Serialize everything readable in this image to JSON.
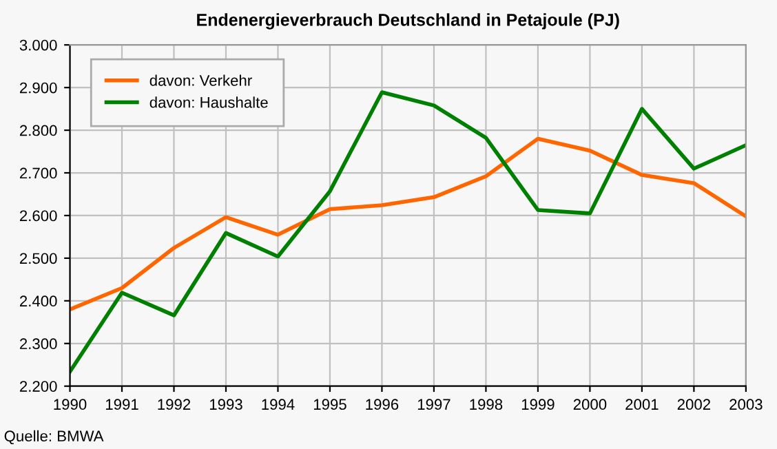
{
  "chart_data": {
    "type": "line",
    "title": "Endenergieverbrauch Deutschland in Petajoule (PJ)",
    "x": [
      1990,
      1991,
      1992,
      1993,
      1994,
      1995,
      1996,
      1997,
      1998,
      1999,
      2000,
      2001,
      2002,
      2003
    ],
    "series": [
      {
        "name": "davon: Verkehr",
        "color": "#ff6600",
        "values": [
          2380,
          2430,
          2524,
          2596,
          2555,
          2615,
          2624,
          2643,
          2692,
          2780,
          2752,
          2695,
          2676,
          2598
        ]
      },
      {
        "name": "davon: Haushalte",
        "color": "#008000",
        "values": [
          2234,
          2419,
          2366,
          2559,
          2504,
          2657,
          2889,
          2858,
          2782,
          2613,
          2605,
          2850,
          2710,
          2765
        ]
      }
    ],
    "xlim": [
      1990,
      2003
    ],
    "xticks": [
      1990,
      1991,
      1992,
      1993,
      1994,
      1995,
      1996,
      1997,
      1998,
      1999,
      2000,
      2001,
      2002,
      2003
    ],
    "ylim": [
      2200,
      3000
    ],
    "yticks": [
      {
        "value": 2200,
        "label": "2.200"
      },
      {
        "value": 2300,
        "label": "2.300"
      },
      {
        "value": 2400,
        "label": "2.400"
      },
      {
        "value": 2500,
        "label": "2.500"
      },
      {
        "value": 2600,
        "label": "2.600"
      },
      {
        "value": 2700,
        "label": "2.700"
      },
      {
        "value": 2800,
        "label": "2.800"
      },
      {
        "value": 2900,
        "label": "2.900"
      },
      {
        "value": 3000,
        "label": "3.000"
      }
    ],
    "grid": true,
    "legend": "top left",
    "marker": "none",
    "line_style": "solid",
    "annotations": [
      "Quelle: BMWA"
    ]
  }
}
